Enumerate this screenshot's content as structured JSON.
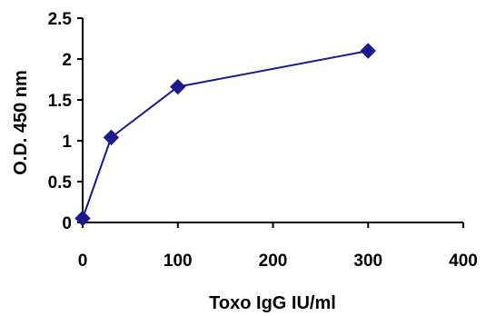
{
  "chart_data": {
    "type": "line",
    "title": "",
    "xlabel": "Toxo IgG IU/ml",
    "ylabel": "O.D. 450 nm",
    "xlim": [
      0,
      400
    ],
    "ylim": [
      0,
      2.5
    ],
    "x_ticks": [
      0,
      100,
      200,
      300,
      400
    ],
    "y_ticks": [
      0,
      0.5,
      1,
      1.5,
      2,
      2.5
    ],
    "x_tick_labels": [
      "0",
      "100",
      "200",
      "300",
      "400"
    ],
    "y_tick_labels": [
      "0",
      "0.5",
      "1",
      "1.5",
      "2",
      "2.5"
    ],
    "grid": false,
    "legend": "none",
    "marker": "diamond",
    "series": [
      {
        "x": [
          0,
          30,
          100,
          300
        ],
        "y": [
          0.05,
          1.04,
          1.66,
          2.1
        ],
        "color": "#1a1a8c"
      }
    ]
  }
}
